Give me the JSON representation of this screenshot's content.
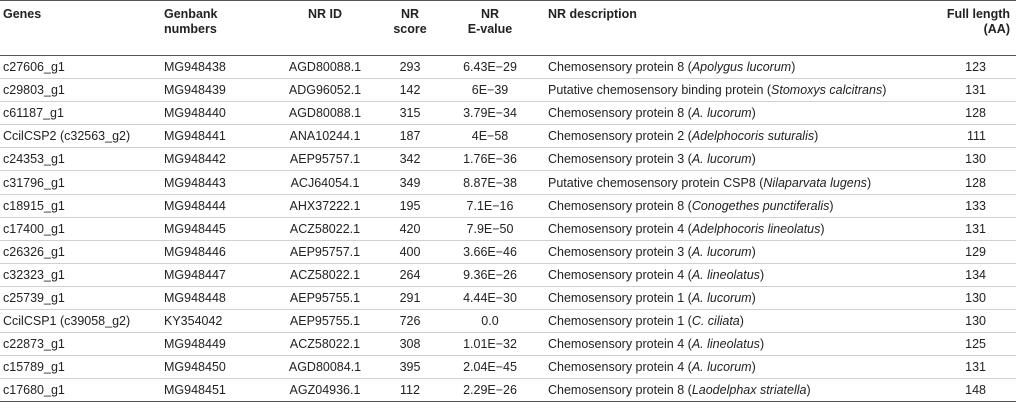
{
  "headers": {
    "genes": "Genes",
    "genbank": [
      "Genbank",
      "numbers"
    ],
    "nr_id": "NR ID",
    "nr_score": [
      "NR",
      "score"
    ],
    "nr_evalue": [
      "NR",
      "E-value"
    ],
    "nr_description": "NR description",
    "full_length": [
      "Full length",
      "(AA)"
    ]
  },
  "rows": [
    {
      "gene": "c27606_g1",
      "genbank": "MG948438",
      "nr_id": "AGD80088.1",
      "score": "293",
      "evalue": "6.43E−29",
      "desc": "Chemosensory protein 8 (",
      "species": "Apolygus lucorum",
      "tail": ")",
      "length": "123"
    },
    {
      "gene": "c29803_g1",
      "genbank": "MG948439",
      "nr_id": "ADG96052.1",
      "score": "142",
      "evalue": "6E−39",
      "desc": "Putative chemosensory binding protein (",
      "species": "Stomoxys calcitrans",
      "tail": ")",
      "length": "131"
    },
    {
      "gene": "c61187_g1",
      "genbank": "MG948440",
      "nr_id": "AGD80088.1",
      "score": "315",
      "evalue": "3.79E−34",
      "desc": "Chemosensory protein 8 (",
      "species": "A. lucorum",
      "tail": ")",
      "length": "128"
    },
    {
      "gene": "CcilCSP2 (c32563_g2)",
      "genbank": "MG948441",
      "nr_id": "ANA10244.1",
      "score": "187",
      "evalue": "4E−58",
      "desc": "Chemosensory protein 2 (",
      "species": "Adelphocoris suturalis",
      "tail": ")",
      "length": "111"
    },
    {
      "gene": "c24353_g1",
      "genbank": "MG948442",
      "nr_id": "AEP95757.1",
      "score": "342",
      "evalue": "1.76E−36",
      "desc": "Chemosensory protein 3 (",
      "species": "A. lucorum",
      "tail": ")",
      "length": "130"
    },
    {
      "gene": "c31796_g1",
      "genbank": "MG948443",
      "nr_id": "ACJ64054.1",
      "score": "349",
      "evalue": "8.87E−38",
      "desc": "Putative chemosensory protein CSP8 (",
      "species": "Nilaparvata lugens",
      "tail": ")",
      "length": "128"
    },
    {
      "gene": "c18915_g1",
      "genbank": "MG948444",
      "nr_id": "AHX37222.1",
      "score": "195",
      "evalue": "7.1E−16",
      "desc": "Chemosensory protein 8 (",
      "species": "Conogethes punctiferalis",
      "tail": ")",
      "length": "133"
    },
    {
      "gene": "c17400_g1",
      "genbank": "MG948445",
      "nr_id": "ACZ58022.1",
      "score": "420",
      "evalue": "7.9E−50",
      "desc": "Chemosensory protein 4 (",
      "species": "Adelphocoris lineolatus",
      "tail": ")",
      "length": "131"
    },
    {
      "gene": "c26326_g1",
      "genbank": "MG948446",
      "nr_id": "AEP95757.1",
      "score": "400",
      "evalue": "3.66E−46",
      "desc": "Chemosensory protein 3 (",
      "species": "A. lucorum",
      "tail": ")",
      "length": "129"
    },
    {
      "gene": "c32323_g1",
      "genbank": "MG948447",
      "nr_id": "ACZ58022.1",
      "score": "264",
      "evalue": "9.36E−26",
      "desc": "Chemosensory protein 4 (",
      "species": "A. lineolatus",
      "tail": ")",
      "length": "134"
    },
    {
      "gene": "c25739_g1",
      "genbank": "MG948448",
      "nr_id": "AEP95755.1",
      "score": "291",
      "evalue": "4.44E−30",
      "desc": "Chemosensory protein 1 (",
      "species": "A. lucorum",
      "tail": ")",
      "length": "130"
    },
    {
      "gene": "CcilCSP1 (c39058_g2)",
      "genbank": "KY354042",
      "nr_id": "AEP95755.1",
      "score": "726",
      "evalue": "0.0",
      "desc": "Chemosensory protein 1 (",
      "species": "C. ciliata",
      "tail": ")",
      "length": "130"
    },
    {
      "gene": "c22873_g1",
      "genbank": "MG948449",
      "nr_id": "ACZ58022.1",
      "score": "308",
      "evalue": "1.01E−32",
      "desc": "Chemosensory protein 4 (",
      "species": "A. lineolatus",
      "tail": ")",
      "length": "125"
    },
    {
      "gene": "c15789_g1",
      "genbank": "MG948450",
      "nr_id": "AGD80084.1",
      "score": "395",
      "evalue": "2.04E−45",
      "desc": "Chemosensory protein 4 (",
      "species": "A. lucorum",
      "tail": ")",
      "length": "131"
    },
    {
      "gene": "c17680_g1",
      "genbank": "MG948451",
      "nr_id": "AGZ04936.1",
      "score": "112",
      "evalue": "2.29E−26",
      "desc": "Chemosensory protein 8 (",
      "species": "Laodelphax striatella",
      "tail": ")",
      "length": "148"
    }
  ]
}
